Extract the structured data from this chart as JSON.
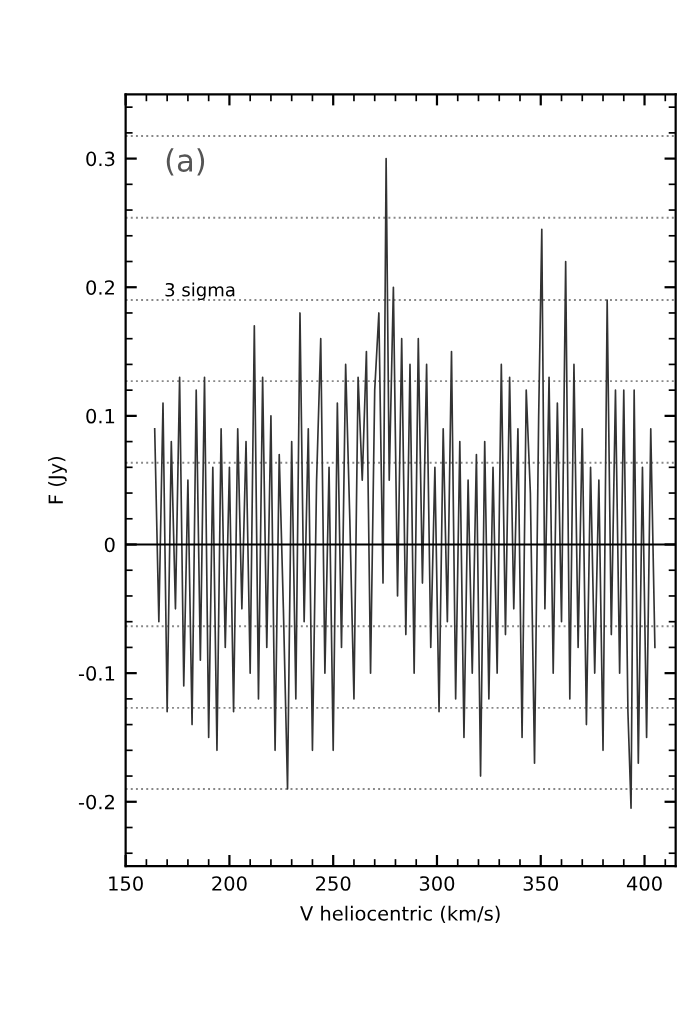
{
  "chart_data": {
    "type": "line",
    "xlabel": "V heliocentric (km/s)",
    "ylabel": "F (Jy)",
    "annotations": [
      "(a)"
    ],
    "xlim": [
      150,
      415
    ],
    "ylim": [
      -0.25,
      0.35
    ],
    "xticks": [
      150,
      200,
      250,
      300,
      350,
      400
    ],
    "yticks": [
      {
        "value": -0.2,
        "label": "-0.2"
      },
      {
        "value": -0.1,
        "label": "-0.1"
      },
      0,
      0.1,
      0.2,
      0.3
    ],
    "grid": false,
    "legend": false,
    "marker": "none",
    "line_style": "solid",
    "ref_lines": [
      {
        "axis": "y",
        "value": 0,
        "label": null,
        "color": "#000000",
        "line_style": "solid"
      },
      {
        "axis": "y",
        "value": 0.0635,
        "label": null,
        "color": "#888888",
        "line_style": "dotted"
      },
      {
        "axis": "y",
        "value": 0.127,
        "label": null,
        "color": "#888888",
        "line_style": "dotted"
      },
      {
        "axis": "y",
        "value": 0.19,
        "label": "3 sigma",
        "color": "#888888",
        "line_style": "dotted"
      },
      {
        "axis": "y",
        "value": 0.254,
        "label": null,
        "color": "#888888",
        "line_style": "dotted"
      },
      {
        "axis": "y",
        "value": 0.3175,
        "label": null,
        "color": "#888888",
        "line_style": "dotted"
      },
      {
        "axis": "y",
        "value": -0.0635,
        "label": null,
        "color": "#888888",
        "line_style": "dotted"
      },
      {
        "axis": "y",
        "value": -0.127,
        "label": null,
        "color": "#888888",
        "line_style": "dotted"
      },
      {
        "axis": "y",
        "value": -0.19,
        "label": null,
        "color": "#888888",
        "line_style": "dotted"
      }
    ],
    "series": [
      {
        "color": "#333333",
        "x": [
          164,
          166,
          168,
          170,
          172,
          174,
          176,
          178,
          180,
          182,
          184,
          186,
          188,
          190,
          192,
          194,
          196,
          198,
          200,
          202,
          204,
          206,
          208,
          210,
          212,
          214,
          216,
          218,
          220,
          222,
          224,
          226,
          228,
          230,
          232,
          234,
          236,
          238,
          240,
          242,
          244,
          246,
          248,
          250,
          252,
          254,
          256,
          258,
          260,
          262,
          264,
          266,
          268,
          270,
          272,
          274,
          275.5,
          277,
          279,
          281,
          283,
          285,
          287,
          289,
          291,
          293,
          295,
          297,
          299,
          301,
          303,
          305,
          307,
          309,
          311,
          313,
          315,
          317,
          319,
          321,
          323,
          325,
          327,
          329,
          331,
          333,
          335,
          337,
          339,
          341,
          343,
          345,
          347,
          349,
          350.5,
          352,
          354,
          356,
          358,
          360,
          362,
          364,
          366,
          368,
          370,
          372,
          374,
          376,
          378,
          380,
          382,
          384,
          386,
          388,
          390,
          392,
          393.5,
          395,
          397,
          399,
          401,
          403,
          405
        ],
        "values": [
          0.09,
          -0.06,
          0.11,
          -0.13,
          0.08,
          -0.05,
          0.13,
          -0.11,
          0.05,
          -0.14,
          0.12,
          -0.09,
          0.13,
          -0.15,
          0.06,
          -0.16,
          0.09,
          -0.08,
          0.06,
          -0.13,
          0.09,
          -0.05,
          0.08,
          -0.1,
          0.17,
          -0.12,
          0.13,
          -0.08,
          0.1,
          -0.16,
          0.07,
          -0.05,
          -0.19,
          0.08,
          -0.12,
          0.18,
          -0.06,
          0.09,
          -0.16,
          0.05,
          0.16,
          -0.1,
          0.06,
          -0.16,
          0.11,
          -0.08,
          0.14,
          0.02,
          -0.12,
          0.13,
          0.05,
          0.15,
          -0.1,
          0.12,
          0.18,
          -0.03,
          0.3,
          0.05,
          0.2,
          -0.04,
          0.16,
          -0.07,
          0.14,
          -0.1,
          0.16,
          -0.03,
          0.14,
          -0.08,
          0.06,
          -0.13,
          0.09,
          -0.06,
          0.15,
          -0.12,
          0.08,
          -0.15,
          0.05,
          -0.1,
          0.07,
          -0.18,
          0.08,
          -0.12,
          0.06,
          -0.1,
          0.14,
          -0.07,
          0.13,
          -0.05,
          0.09,
          -0.15,
          0.12,
          0.04,
          -0.17,
          0.1,
          0.245,
          -0.05,
          0.13,
          -0.1,
          0.11,
          -0.06,
          0.22,
          -0.12,
          0.14,
          -0.08,
          0.09,
          -0.14,
          0.06,
          -0.1,
          0.05,
          -0.16,
          0.19,
          -0.07,
          0.12,
          -0.1,
          0.12,
          -0.13,
          -0.205,
          0.12,
          -0.17,
          0.06,
          -0.15,
          0.09,
          -0.08
        ]
      }
    ]
  }
}
